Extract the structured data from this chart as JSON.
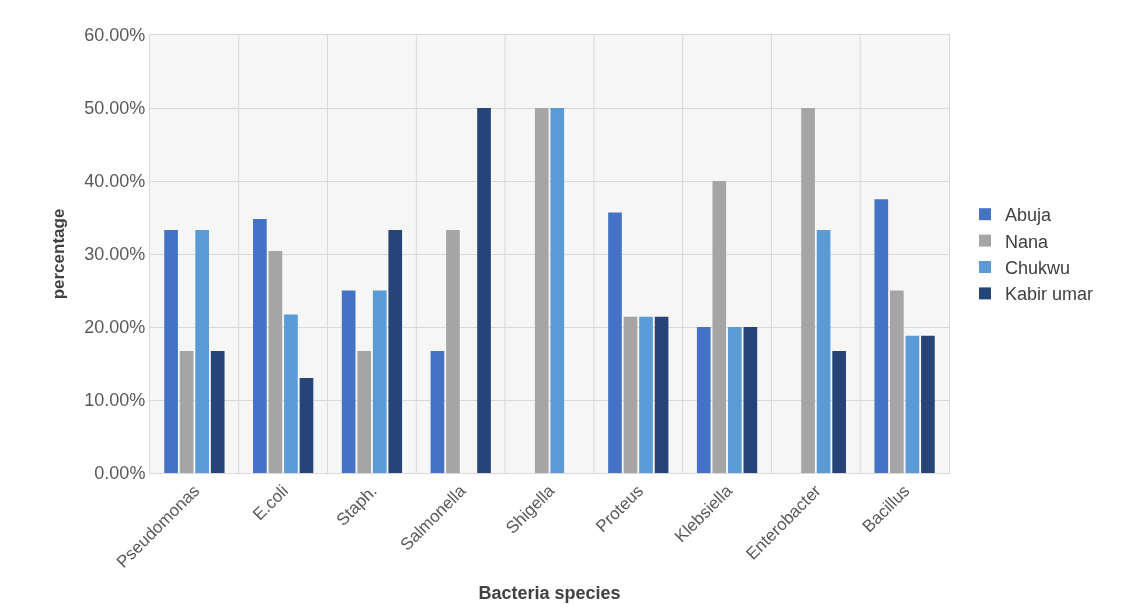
{
  "chart_data": {
    "type": "bar",
    "xlabel": "Bacteria species",
    "ylabel": "percentage",
    "categories": [
      "Pseudomonas",
      "E.coli",
      "Staph.",
      "Salmonella",
      "Shigella",
      "Proteus",
      "Klebsiella",
      "Enterobacter",
      "Bacillus"
    ],
    "series": [
      {
        "name": "Abuja",
        "color": "#4472c4",
        "values": [
          33.3,
          34.8,
          25.0,
          16.7,
          0,
          35.7,
          20.0,
          0,
          37.5
        ]
      },
      {
        "name": "Nana",
        "color": "#a5a5a5",
        "values": [
          16.7,
          30.4,
          16.7,
          33.3,
          50.0,
          21.4,
          40.0,
          50.0,
          25.0
        ]
      },
      {
        "name": "Chukwu",
        "color": "#5b9bd5",
        "values": [
          33.3,
          21.7,
          25.0,
          0,
          50.0,
          21.4,
          20.0,
          33.3,
          18.8
        ]
      },
      {
        "name": "Kabir umar",
        "color": "#264478",
        "values": [
          16.7,
          13.0,
          33.3,
          50.0,
          0,
          21.4,
          20.0,
          16.7,
          18.8
        ]
      }
    ],
    "ylim": [
      0,
      60
    ],
    "yticks": [
      {
        "value": 0,
        "label": "0.00%"
      },
      {
        "value": 10,
        "label": "10.00%"
      },
      {
        "value": 20,
        "label": "20.00%"
      },
      {
        "value": 30,
        "label": "30.00%"
      },
      {
        "value": 40,
        "label": "40.00%"
      },
      {
        "value": 50,
        "label": "50.00%"
      },
      {
        "value": 60,
        "label": "60.00%"
      }
    ],
    "grid": true,
    "legend": "right"
  }
}
